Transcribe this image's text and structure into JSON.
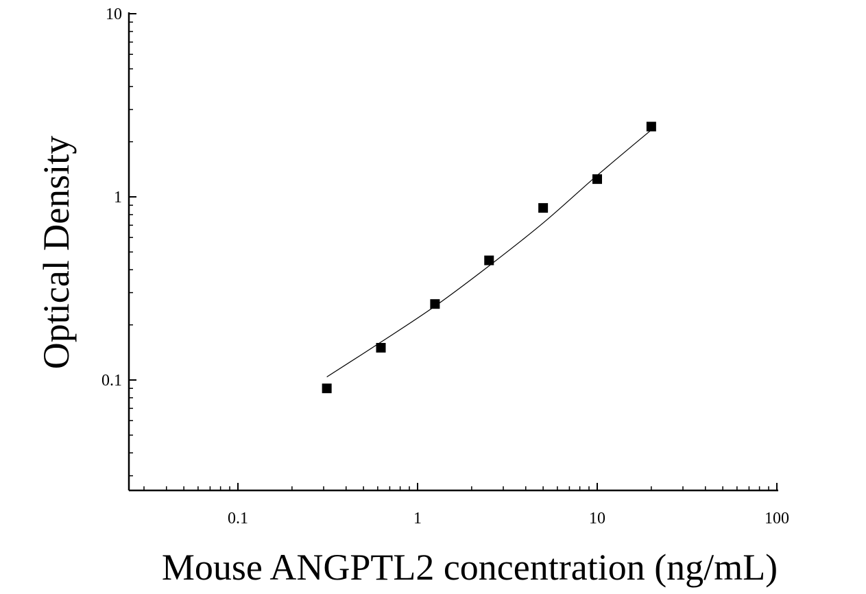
{
  "chart_data": {
    "type": "scatter",
    "xlabel": "Mouse ANGPTL2 concentration (ng/mL)",
    "ylabel": "Optical Density",
    "xscale": "log",
    "yscale": "log",
    "xlim": [
      0.025,
      100
    ],
    "ylim": [
      0.025,
      10
    ],
    "grid": false,
    "x_ticks": [
      {
        "value": 0.1,
        "label": "0.1"
      },
      {
        "value": 1,
        "label": "1"
      },
      {
        "value": 10,
        "label": "10"
      },
      {
        "value": 100,
        "label": "100"
      }
    ],
    "y_ticks": [
      {
        "value": 0.1,
        "label": "0.1"
      },
      {
        "value": 1,
        "label": "1"
      },
      {
        "value": 10,
        "label": "10"
      }
    ],
    "series": [
      {
        "kind": "points",
        "marker": "square",
        "color": "#000000",
        "x": [
          0.3125,
          0.625,
          1.25,
          2.5,
          5,
          10,
          20
        ],
        "y": [
          0.09,
          0.15,
          0.26,
          0.45,
          0.87,
          1.25,
          2.42
        ]
      },
      {
        "kind": "fit-line",
        "color": "#000000",
        "x": [
          0.3125,
          0.625,
          1.25,
          2.5,
          5,
          10,
          20
        ],
        "y": [
          0.104,
          0.161,
          0.253,
          0.42,
          0.72,
          1.31,
          2.32
        ]
      }
    ]
  }
}
